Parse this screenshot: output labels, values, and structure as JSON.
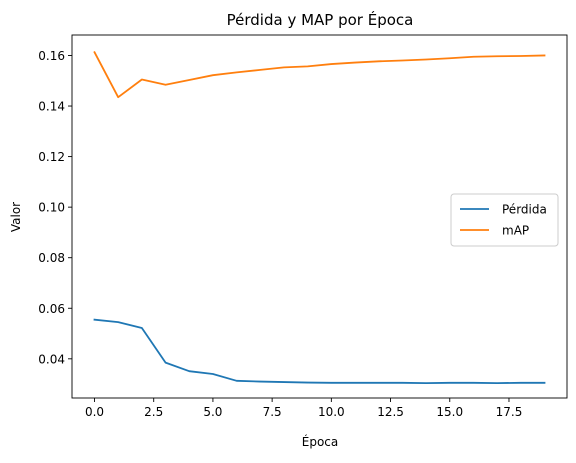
{
  "chart_data": {
    "type": "line",
    "title": "Pérdida y MAP por Época",
    "xlabel": "Época",
    "ylabel": "Valor",
    "xlim": [
      -0.95,
      19.95
    ],
    "ylim": [
      0.0245,
      0.1681
    ],
    "xticks": [
      0.0,
      2.5,
      5.0,
      7.5,
      10.0,
      12.5,
      15.0,
      17.5
    ],
    "xtick_labels": [
      "0.0",
      "2.5",
      "5.0",
      "7.5",
      "10.0",
      "12.5",
      "15.0",
      "17.5"
    ],
    "yticks": [
      0.04,
      0.06,
      0.08,
      0.1,
      0.12,
      0.14,
      0.16
    ],
    "ytick_labels": [
      "0.04",
      "0.06",
      "0.08",
      "0.10",
      "0.12",
      "0.14",
      "0.16"
    ],
    "grid": false,
    "legend_position": "center-right",
    "x": [
      0,
      1,
      2,
      3,
      4,
      5,
      6,
      7,
      8,
      9,
      10,
      11,
      12,
      13,
      14,
      15,
      16,
      17,
      18,
      19
    ],
    "series": [
      {
        "name": "Pérdida",
        "color": "#1f77b4",
        "values": [
          0.0555,
          0.0545,
          0.0522,
          0.0385,
          0.0351,
          0.034,
          0.0313,
          0.031,
          0.0308,
          0.0306,
          0.0305,
          0.0305,
          0.0305,
          0.0305,
          0.0304,
          0.0305,
          0.0305,
          0.0304,
          0.0305,
          0.0305
        ]
      },
      {
        "name": "mAP",
        "color": "#ff7f0e",
        "values": [
          0.1613,
          0.1435,
          0.1505,
          0.1484,
          0.1503,
          0.1522,
          0.1533,
          0.1543,
          0.1553,
          0.1557,
          0.1566,
          0.1572,
          0.1577,
          0.158,
          0.1584,
          0.1589,
          0.1595,
          0.1597,
          0.1598,
          0.16
        ]
      }
    ]
  }
}
